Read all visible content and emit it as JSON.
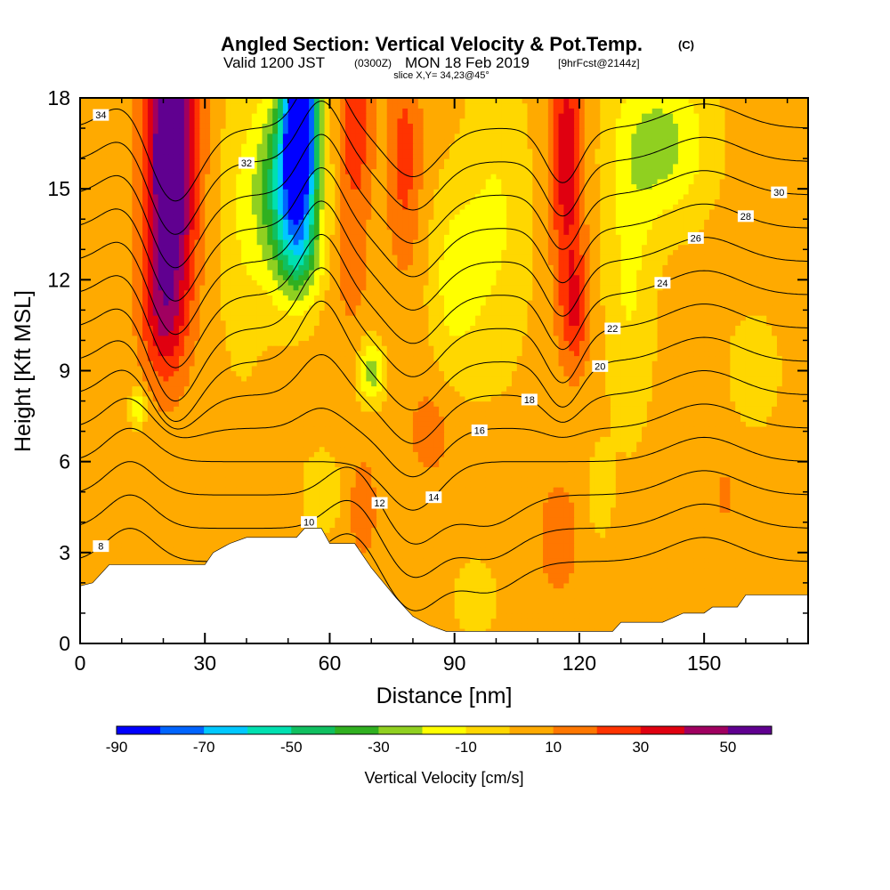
{
  "chart_data": {
    "type": "heatmap",
    "title": "Angled Section: Vertical Velocity & Pot.Temp.",
    "title_unit": "(C)",
    "subtitle": {
      "valid": "Valid 1200 JST",
      "zulu": "(0300Z)",
      "date": "MON 18 Feb 2019",
      "forecast": "[9hrFcst@2144z]"
    },
    "slice": "slice X,Y= 34,23@45°",
    "xlabel": "Distance [nm]",
    "ylabel": "Height [Kft MSL]",
    "xlim": [
      0,
      175
    ],
    "ylim": [
      0,
      18
    ],
    "x_ticks": [
      0,
      30,
      60,
      90,
      120,
      150
    ],
    "y_ticks": [
      0,
      3,
      6,
      9,
      12,
      15,
      18
    ],
    "colorbar": {
      "title": "Vertical Velocity [cm/s]",
      "tick_labels": [
        -90,
        -70,
        -50,
        -30,
        -10,
        10,
        30,
        50
      ],
      "levels": [
        -90,
        -80,
        -70,
        -60,
        -50,
        -40,
        -30,
        -20,
        -10,
        0,
        10,
        20,
        30,
        40,
        50,
        60
      ],
      "colors": [
        "#0000ff",
        "#0064ff",
        "#00c8ff",
        "#00e0b0",
        "#10c060",
        "#30b020",
        "#90d020",
        "#ffff00",
        "#ffd700",
        "#ffaa00",
        "#ff7700",
        "#ff3300",
        "#e00010",
        "#a00060",
        "#600090"
      ]
    },
    "features": [
      {
        "label": "strong-updraft",
        "x": 22,
        "ymin": 9,
        "ymax": 18,
        "w": 50
      },
      {
        "label": "strong-downdraft",
        "x": 54,
        "ymin": 12,
        "ymax": 18,
        "w": -80
      },
      {
        "label": "downdraft-mid",
        "x": 70,
        "ymin": 8,
        "ymax": 10,
        "w": -30
      },
      {
        "label": "updraft",
        "x": 117,
        "ymin": 9,
        "ymax": 18,
        "w": 30
      },
      {
        "label": "updraft-low",
        "x": 68,
        "ymin": 4,
        "ymax": 6,
        "w": 25
      },
      {
        "label": "weak-downdraft",
        "x": 140,
        "ymin": 15,
        "ymax": 18,
        "w": -30
      }
    ],
    "isentropes": [
      {
        "label": "8",
        "level": 8
      },
      {
        "label": "10",
        "level": 10
      },
      {
        "label": "12",
        "level": 12
      },
      {
        "label": "14",
        "level": 14
      },
      {
        "label": "16",
        "level": 16
      },
      {
        "label": "18",
        "level": 18
      },
      {
        "label": "20",
        "level": 20
      },
      {
        "label": "22",
        "level": 22
      },
      {
        "label": "24",
        "level": 24
      },
      {
        "label": "26",
        "level": 26
      },
      {
        "label": "28",
        "level": 28
      },
      {
        "label": "30",
        "level": 30
      },
      {
        "label": "32",
        "level": 32
      },
      {
        "label": "34",
        "level": 34
      }
    ],
    "terrain": [
      [
        0,
        1.9
      ],
      [
        3,
        2.0
      ],
      [
        5,
        2.3
      ],
      [
        7,
        2.6
      ],
      [
        20,
        2.6
      ],
      [
        30,
        2.6
      ],
      [
        32,
        3.0
      ],
      [
        36,
        3.3
      ],
      [
        40,
        3.5
      ],
      [
        52,
        3.5
      ],
      [
        54,
        3.8
      ],
      [
        58,
        3.8
      ],
      [
        60,
        3.3
      ],
      [
        66,
        3.3
      ],
      [
        70,
        2.5
      ],
      [
        76,
        1.5
      ],
      [
        80,
        0.9
      ],
      [
        84,
        0.6
      ],
      [
        88,
        0.4
      ],
      [
        128,
        0.4
      ],
      [
        130,
        0.7
      ],
      [
        140,
        0.7
      ],
      [
        145,
        1.0
      ],
      [
        150,
        1.0
      ],
      [
        152,
        1.2
      ],
      [
        158,
        1.2
      ],
      [
        160,
        1.6
      ],
      [
        175,
        1.6
      ]
    ]
  }
}
